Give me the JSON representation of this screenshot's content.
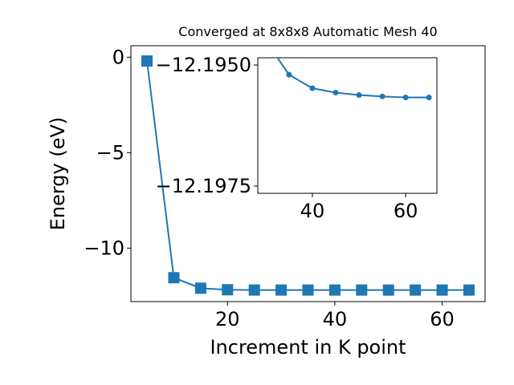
{
  "chart_data": [
    {
      "type": "line",
      "title": "Converged at 8x8x8 Automatic Mesh 40",
      "xlabel": "Increment in K point",
      "ylabel": "Energy (eV)",
      "xlim": [
        2.0,
        68.0
      ],
      "ylim": [
        -12.8,
        0.6
      ],
      "xticks": [
        "20",
        "40",
        "60"
      ],
      "xtick_values": [
        20,
        40,
        60
      ],
      "yticks": [
        "0",
        "−5",
        "−10"
      ],
      "ytick_values": [
        0,
        -5,
        -10
      ],
      "grid": false,
      "marker": "square",
      "color": "#1f77b4",
      "x": [
        5,
        10,
        15,
        20,
        25,
        30,
        35,
        40,
        45,
        50,
        55,
        60,
        65
      ],
      "y": [
        -0.2,
        -11.55,
        -12.1,
        -12.18,
        -12.195,
        -12.195,
        -12.195,
        -12.196,
        -12.196,
        -12.196,
        -12.196,
        -12.196,
        -12.196
      ]
    },
    {
      "type": "line",
      "title": "",
      "xlim": [
        28.3,
        66.7
      ],
      "ylim": [
        -12.19765,
        -12.19485
      ],
      "xticks": [
        "40",
        "60"
      ],
      "xtick_values": [
        40,
        60
      ],
      "yticks": [
        "−12.1975",
        "−12.1950"
      ],
      "ytick_values": [
        -12.1975,
        -12.195
      ],
      "grid": false,
      "marker": "circle",
      "color": "#1f77b4",
      "x": [
        30,
        35,
        40,
        45,
        50,
        55,
        60,
        65
      ],
      "y": [
        -12.1945,
        -12.1952,
        -12.19548,
        -12.19557,
        -12.19562,
        -12.19565,
        -12.19567,
        -12.19567
      ]
    }
  ]
}
